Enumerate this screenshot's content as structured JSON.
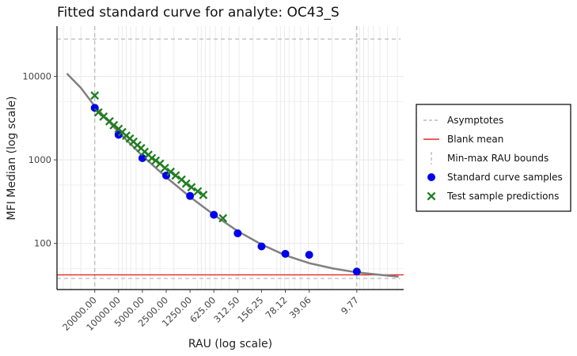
{
  "chart_data": {
    "type": "scatter",
    "title": "Fitted standard curve for analyte: OC43_S",
    "xlabel": "RAU (log scale)",
    "ylabel": "MFI  Median (log scale)",
    "x_scale": "log",
    "y_scale": "log",
    "x_reversed": true,
    "xlim": [
      60000,
      2.5
    ],
    "ylim": [
      28,
      40000
    ],
    "x_ticks": [
      {
        "value": 20000,
        "label": "20000.00"
      },
      {
        "value": 10000,
        "label": "10000.00"
      },
      {
        "value": 5000,
        "label": "5000.00"
      },
      {
        "value": 2500,
        "label": "2500.00"
      },
      {
        "value": 1250,
        "label": "1250.00"
      },
      {
        "value": 625,
        "label": "625.00"
      },
      {
        "value": 312.5,
        "label": "312.50"
      },
      {
        "value": 156.25,
        "label": "156.25"
      },
      {
        "value": 78.12,
        "label": "78.12"
      },
      {
        "value": 39.06,
        "label": "39.06"
      },
      {
        "value": 9.77,
        "label": "9.77"
      }
    ],
    "y_ticks": [
      {
        "value": 100,
        "label": "100"
      },
      {
        "value": 1000,
        "label": "1000"
      },
      {
        "value": 10000,
        "label": "10000"
      }
    ],
    "upper_asymptote": 28000,
    "lower_asymptote": 38,
    "blank_mean": 42,
    "rau_bounds": [
      20000,
      9.77
    ],
    "standard_curve": [
      {
        "rau": 20000,
        "mfi": 4200
      },
      {
        "rau": 10000,
        "mfi": 2000
      },
      {
        "rau": 5000,
        "mfi": 1050
      },
      {
        "rau": 2500,
        "mfi": 650
      },
      {
        "rau": 1250,
        "mfi": 370
      },
      {
        "rau": 625,
        "mfi": 220
      },
      {
        "rau": 312.5,
        "mfi": 132
      },
      {
        "rau": 156.25,
        "mfi": 92
      },
      {
        "rau": 78.12,
        "mfi": 75
      },
      {
        "rau": 39.06,
        "mfi": 73
      },
      {
        "rau": 9.77,
        "mfi": 46
      }
    ],
    "fitted_curve": [
      {
        "rau": 45000,
        "mfi": 10800
      },
      {
        "rau": 30000,
        "mfi": 7300
      },
      {
        "rau": 20000,
        "mfi": 4400
      },
      {
        "rau": 10000,
        "mfi": 2150
      },
      {
        "rau": 5000,
        "mfi": 1120
      },
      {
        "rau": 2500,
        "mfi": 620
      },
      {
        "rau": 1250,
        "mfi": 360
      },
      {
        "rau": 625,
        "mfi": 220
      },
      {
        "rau": 312.5,
        "mfi": 140
      },
      {
        "rau": 156.25,
        "mfi": 97
      },
      {
        "rau": 78.12,
        "mfi": 72
      },
      {
        "rau": 39.06,
        "mfi": 58
      },
      {
        "rau": 19.5,
        "mfi": 50
      },
      {
        "rau": 9.77,
        "mfi": 45
      },
      {
        "rau": 5,
        "mfi": 42
      },
      {
        "rau": 2.9,
        "mfi": 40
      }
    ],
    "test_predictions": [
      {
        "rau": 20000,
        "mfi": 5900
      },
      {
        "rau": 18000,
        "mfi": 3700
      },
      {
        "rau": 15500,
        "mfi": 3300
      },
      {
        "rau": 13000,
        "mfi": 2900
      },
      {
        "rau": 11500,
        "mfi": 2600
      },
      {
        "rau": 10000,
        "mfi": 2350
      },
      {
        "rau": 9000,
        "mfi": 2150
      },
      {
        "rau": 8000,
        "mfi": 1950
      },
      {
        "rau": 7200,
        "mfi": 1800
      },
      {
        "rau": 6500,
        "mfi": 1650
      },
      {
        "rau": 5800,
        "mfi": 1500
      },
      {
        "rau": 5200,
        "mfi": 1380
      },
      {
        "rau": 4700,
        "mfi": 1250
      },
      {
        "rau": 4200,
        "mfi": 1150
      },
      {
        "rau": 3800,
        "mfi": 1050
      },
      {
        "rau": 3400,
        "mfi": 980
      },
      {
        "rau": 3000,
        "mfi": 900
      },
      {
        "rau": 2600,
        "mfi": 800
      },
      {
        "rau": 2200,
        "mfi": 720
      },
      {
        "rau": 1900,
        "mfi": 650
      },
      {
        "rau": 1600,
        "mfi": 580
      },
      {
        "rau": 1400,
        "mfi": 520
      },
      {
        "rau": 1200,
        "mfi": 470
      },
      {
        "rau": 1000,
        "mfi": 420
      },
      {
        "rau": 850,
        "mfi": 380
      },
      {
        "rau": 480,
        "mfi": 200
      }
    ],
    "legend": {
      "position": "right",
      "entries": [
        {
          "label": "Asymptotes",
          "kind": "dashed-line",
          "color": "#bbbbbb"
        },
        {
          "label": "Blank mean",
          "kind": "line",
          "color": "#e8251e"
        },
        {
          "label": "Min-max RAU bounds",
          "kind": "vdashed-line",
          "color": "#bbbbbb"
        },
        {
          "label": "Standard curve samples",
          "kind": "dot",
          "color": "#0000ee"
        },
        {
          "label": "Test sample predictions",
          "kind": "cross",
          "color": "#1e7d1e"
        }
      ]
    },
    "colors": {
      "curve": "#808080",
      "asymptote": "#bbbbbb",
      "blank": "#e8251e",
      "standard": "#0000ee",
      "test": "#1e7d1e",
      "grid": "#ebebeb"
    }
  }
}
